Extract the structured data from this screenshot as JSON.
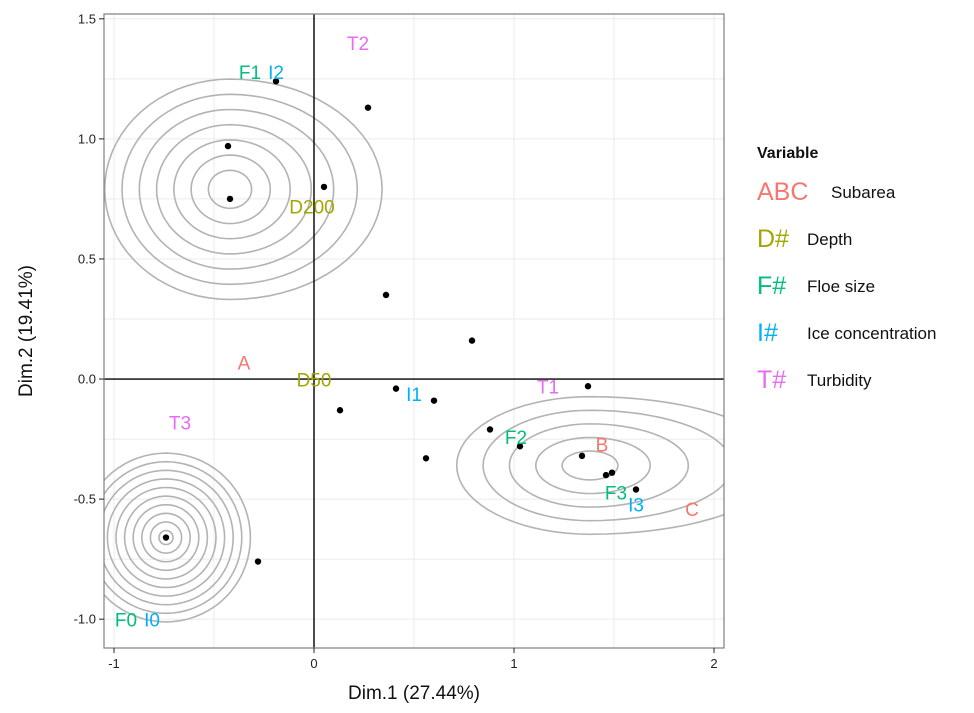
{
  "chart_data": {
    "type": "scatter",
    "title": "",
    "xlabel": "Dim.1 (27.44%)",
    "ylabel": "Dim.2 (19.41%)",
    "xlim": [
      -1.05,
      2.05
    ],
    "ylim": [
      -1.12,
      1.52
    ],
    "x_ticks": [
      -1,
      0,
      1,
      2
    ],
    "y_ticks": [
      -1.0,
      -0.5,
      0.0,
      0.5,
      1.0,
      1.5
    ],
    "x_tick_labels": [
      "-1",
      "0",
      "1",
      "2"
    ],
    "y_tick_labels": [
      "-1.0",
      "-0.5",
      "0.0",
      "0.5",
      "1.0",
      "1.5"
    ],
    "grid": true,
    "reference_lines": {
      "x": 0,
      "y": 0
    },
    "points": [
      {
        "x": -0.19,
        "y": 1.24
      },
      {
        "x": 0.27,
        "y": 1.13
      },
      {
        "x": -0.43,
        "y": 0.97
      },
      {
        "x": 0.05,
        "y": 0.8
      },
      {
        "x": -0.42,
        "y": 0.75
      },
      {
        "x": 0.36,
        "y": 0.35
      },
      {
        "x": 0.79,
        "y": 0.16
      },
      {
        "x": 0.41,
        "y": -0.04
      },
      {
        "x": 1.37,
        "y": -0.03
      },
      {
        "x": 0.6,
        "y": -0.09
      },
      {
        "x": 0.13,
        "y": -0.13
      },
      {
        "x": 0.88,
        "y": -0.21
      },
      {
        "x": 1.03,
        "y": -0.28
      },
      {
        "x": 0.56,
        "y": -0.33
      },
      {
        "x": 1.34,
        "y": -0.32
      },
      {
        "x": 1.46,
        "y": -0.4
      },
      {
        "x": 1.49,
        "y": -0.39
      },
      {
        "x": 1.61,
        "y": -0.46
      },
      {
        "x": -0.74,
        "y": -0.66
      },
      {
        "x": -0.28,
        "y": -0.76
      }
    ],
    "labels": [
      {
        "text": "A",
        "x": -0.35,
        "y": 0.06,
        "group": "subarea"
      },
      {
        "text": "B",
        "x": 1.44,
        "y": -0.28,
        "group": "subarea"
      },
      {
        "text": "C",
        "x": 1.89,
        "y": -0.55,
        "group": "subarea"
      },
      {
        "text": "D200",
        "x": -0.01,
        "y": 0.71,
        "group": "depth"
      },
      {
        "text": "D50",
        "x": 0.0,
        "y": -0.01,
        "group": "depth"
      },
      {
        "text": "F1",
        "x": -0.32,
        "y": 1.27,
        "group": "floe"
      },
      {
        "text": "F2",
        "x": 1.01,
        "y": -0.25,
        "group": "floe"
      },
      {
        "text": "F3",
        "x": 1.51,
        "y": -0.48,
        "group": "floe"
      },
      {
        "text": "F0",
        "x": -0.94,
        "y": -1.01,
        "group": "floe"
      },
      {
        "text": "I2",
        "x": -0.19,
        "y": 1.27,
        "group": "ice"
      },
      {
        "text": "I1",
        "x": 0.5,
        "y": -0.07,
        "group": "ice"
      },
      {
        "text": "I3",
        "x": 1.61,
        "y": -0.53,
        "group": "ice"
      },
      {
        "text": "I0",
        "x": -0.81,
        "y": -1.01,
        "group": "ice"
      },
      {
        "text": "T2",
        "x": 0.22,
        "y": 1.39,
        "group": "turbidity"
      },
      {
        "text": "T1",
        "x": 1.17,
        "y": -0.04,
        "group": "turbidity"
      },
      {
        "text": "T3",
        "x": -0.67,
        "y": -0.19,
        "group": "turbidity"
      }
    ],
    "density_centers": [
      {
        "x": -0.42,
        "y": 0.79
      },
      {
        "x": 1.38,
        "y": -0.36
      },
      {
        "x": -0.74,
        "y": -0.66
      }
    ],
    "legend": {
      "title": "Variable",
      "placement": "right",
      "entries": [
        {
          "key": "ABC",
          "label": "Subarea",
          "group": "subarea"
        },
        {
          "key": "D#",
          "label": "Depth",
          "group": "depth"
        },
        {
          "key": "F#",
          "label": "Floe size",
          "group": "floe"
        },
        {
          "key": "I#",
          "label": "Ice concentration",
          "group": "ice"
        },
        {
          "key": "T#",
          "label": "Turbidity",
          "group": "turbidity"
        }
      ]
    },
    "colors": {
      "subarea": "#f8766d",
      "depth": "#a3a500",
      "floe": "#00bf7d",
      "ice": "#00b0f6",
      "turbidity": "#e76bf3",
      "point": "#000000",
      "contour": "#b3b3b3",
      "grid": "#ebebeb",
      "frame": "#7f7f7f"
    }
  }
}
